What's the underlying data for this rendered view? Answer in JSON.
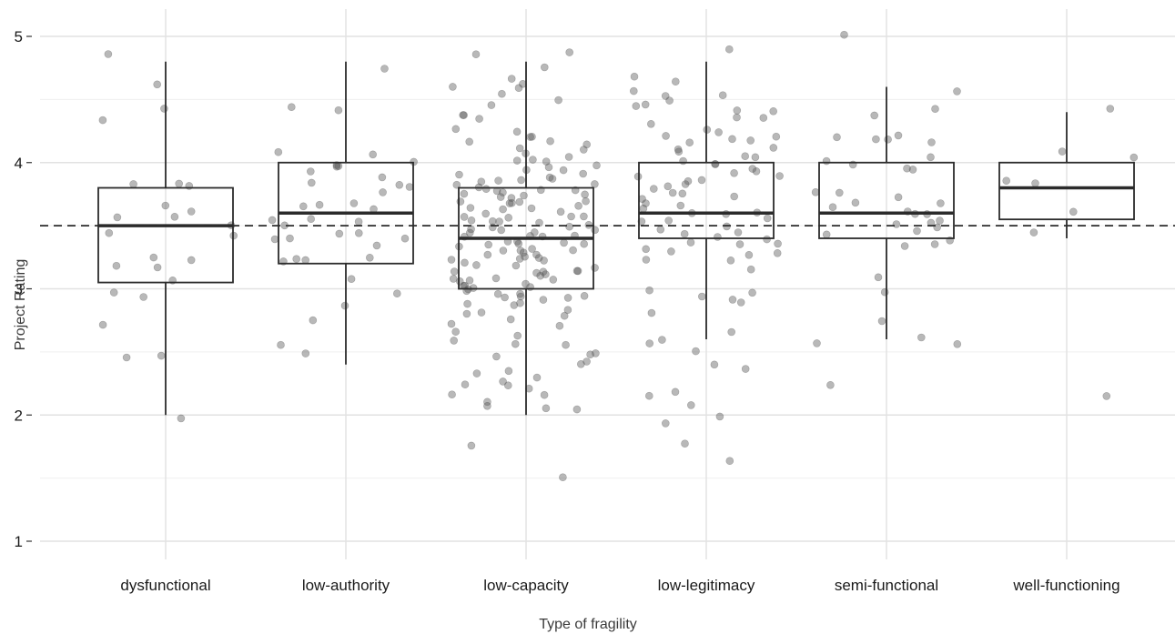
{
  "chart_data": {
    "type": "boxplot",
    "title": "",
    "xlabel": "Type of fragility",
    "ylabel": "Project Rating",
    "ylim": [
      0.7,
      5.2
    ],
    "y_ticks": [
      "1",
      "2",
      "3",
      "4",
      "5"
    ],
    "grid": true,
    "reference_line": {
      "y": 3.5,
      "style": "dashed"
    },
    "categories": [
      "dysfunctional",
      "low-authority",
      "low-capacity",
      "low-legitimacy",
      "semi-functional",
      "well-functioning"
    ],
    "boxes": [
      {
        "category": "dysfunctional",
        "whisker_low": 2.0,
        "q1": 3.05,
        "median": 3.5,
        "q3": 3.8,
        "whisker_high": 4.8
      },
      {
        "category": "low-authority",
        "whisker_low": 2.4,
        "q1": 3.2,
        "median": 3.6,
        "q3": 4.0,
        "whisker_high": 4.8
      },
      {
        "category": "low-capacity",
        "whisker_low": 2.0,
        "q1": 3.0,
        "median": 3.4,
        "q3": 3.8,
        "whisker_high": 4.8
      },
      {
        "category": "low-legitimacy",
        "whisker_low": 2.6,
        "q1": 3.4,
        "median": 3.6,
        "q3": 4.0,
        "whisker_high": 4.8
      },
      {
        "category": "semi-functional",
        "whisker_low": 2.6,
        "q1": 3.4,
        "median": 3.6,
        "q3": 4.0,
        "whisker_high": 4.6
      },
      {
        "category": "well-functioning",
        "whisker_low": 3.4,
        "q1": 3.55,
        "median": 3.8,
        "q3": 4.0,
        "whisker_high": 4.4
      }
    ],
    "points": [
      {
        "category": "dysfunctional",
        "values": [
          4.43,
          4.85,
          4.62,
          4.35,
          3.83,
          3.84,
          3.8,
          3.65,
          3.6,
          3.57,
          3.55,
          3.52,
          3.44,
          3.41,
          3.25,
          3.22,
          3.2,
          3.16,
          3.06,
          2.98,
          2.93,
          2.73,
          2.47,
          2.46,
          1.97
        ]
      },
      {
        "category": "low-authority",
        "values": [
          4.75,
          4.43,
          4.4,
          4.08,
          4.07,
          4.0,
          3.98,
          3.98,
          3.97,
          3.92,
          3.87,
          3.85,
          3.84,
          3.82,
          3.77,
          3.66,
          3.66,
          3.65,
          3.64,
          3.57,
          3.54,
          3.53,
          3.52,
          3.45,
          3.44,
          3.41,
          3.39,
          3.38,
          3.35,
          3.26,
          3.24,
          3.22,
          3.2,
          3.09,
          2.95,
          2.85,
          2.75,
          2.55,
          2.48
        ]
      },
      {
        "category": "low-capacity",
        "values": [
          4.86,
          4.84,
          4.74,
          4.65,
          4.62,
          4.61,
          4.6,
          4.56,
          4.5,
          4.45,
          4.39,
          4.36,
          4.34,
          4.27,
          4.24,
          4.22,
          4.2,
          4.18,
          4.17,
          4.15,
          4.13,
          4.1,
          4.08,
          4.06,
          4.04,
          4.02,
          4.0,
          3.98,
          3.96,
          3.95,
          3.94,
          3.92,
          3.9,
          3.88,
          3.87,
          3.86,
          3.85,
          3.84,
          3.83,
          3.82,
          3.81,
          3.8,
          3.79,
          3.78,
          3.77,
          3.76,
          3.75,
          3.74,
          3.73,
          3.72,
          3.71,
          3.7,
          3.69,
          3.68,
          3.67,
          3.66,
          3.65,
          3.64,
          3.63,
          3.62,
          3.61,
          3.6,
          3.59,
          3.58,
          3.57,
          3.56,
          3.55,
          3.54,
          3.53,
          3.52,
          3.51,
          3.5,
          3.49,
          3.48,
          3.47,
          3.46,
          3.45,
          3.44,
          3.43,
          3.42,
          3.41,
          3.4,
          3.39,
          3.38,
          3.37,
          3.36,
          3.35,
          3.34,
          3.33,
          3.32,
          3.31,
          3.3,
          3.29,
          3.28,
          3.27,
          3.26,
          3.25,
          3.24,
          3.23,
          3.22,
          3.21,
          3.2,
          3.19,
          3.18,
          3.17,
          3.16,
          3.15,
          3.14,
          3.13,
          3.12,
          3.11,
          3.1,
          3.09,
          3.08,
          3.07,
          3.06,
          3.05,
          3.04,
          3.03,
          3.02,
          3.01,
          3.0,
          2.99,
          2.98,
          2.97,
          2.96,
          2.95,
          2.94,
          2.93,
          2.92,
          2.91,
          2.9,
          2.88,
          2.86,
          2.84,
          2.82,
          2.8,
          2.77,
          2.75,
          2.72,
          2.7,
          2.66,
          2.63,
          2.6,
          2.57,
          2.54,
          2.5,
          2.47,
          2.46,
          2.43,
          2.4,
          2.36,
          2.34,
          2.3,
          2.27,
          2.24,
          2.22,
          2.2,
          2.18,
          2.15,
          2.12,
          2.08,
          2.05,
          2.03,
          1.74,
          1.52
        ]
      },
      {
        "category": "low-legitimacy",
        "values": [
          4.88,
          4.67,
          4.66,
          4.55,
          4.53,
          4.52,
          4.49,
          4.46,
          4.45,
          4.42,
          4.4,
          4.36,
          4.34,
          4.3,
          4.27,
          4.25,
          4.22,
          4.2,
          4.18,
          4.17,
          4.15,
          4.12,
          4.1,
          4.08,
          4.06,
          4.04,
          4.02,
          4.0,
          3.98,
          3.96,
          3.94,
          3.92,
          3.9,
          3.88,
          3.86,
          3.84,
          3.82,
          3.8,
          3.78,
          3.76,
          3.74,
          3.72,
          3.7,
          3.68,
          3.66,
          3.64,
          3.62,
          3.6,
          3.58,
          3.56,
          3.54,
          3.52,
          3.5,
          3.48,
          3.46,
          3.44,
          3.42,
          3.4,
          3.38,
          3.36,
          3.34,
          3.32,
          3.3,
          3.28,
          3.26,
          3.24,
          3.22,
          3.14,
          3.0,
          2.98,
          2.94,
          2.9,
          2.88,
          2.82,
          2.64,
          2.6,
          2.56,
          2.52,
          2.4,
          2.36,
          2.17,
          2.14,
          2.07,
          1.97,
          1.95,
          1.77,
          1.65
        ]
      },
      {
        "category": "semi-functional",
        "values": [
          5.0,
          4.55,
          4.41,
          4.36,
          4.22,
          4.2,
          4.19,
          4.18,
          4.17,
          4.05,
          4.02,
          4.0,
          3.97,
          3.96,
          3.77,
          3.76,
          3.72,
          3.68,
          3.67,
          3.64,
          3.62,
          3.6,
          3.58,
          3.54,
          3.52,
          3.5,
          3.48,
          3.46,
          3.44,
          3.38,
          3.35,
          3.33,
          3.08,
          2.97,
          2.76,
          2.63,
          2.58,
          2.55,
          2.22
        ]
      },
      {
        "category": "well-functioning",
        "values": [
          4.41,
          4.08,
          4.05,
          3.85,
          3.84,
          3.61,
          3.43,
          2.15
        ]
      }
    ]
  }
}
